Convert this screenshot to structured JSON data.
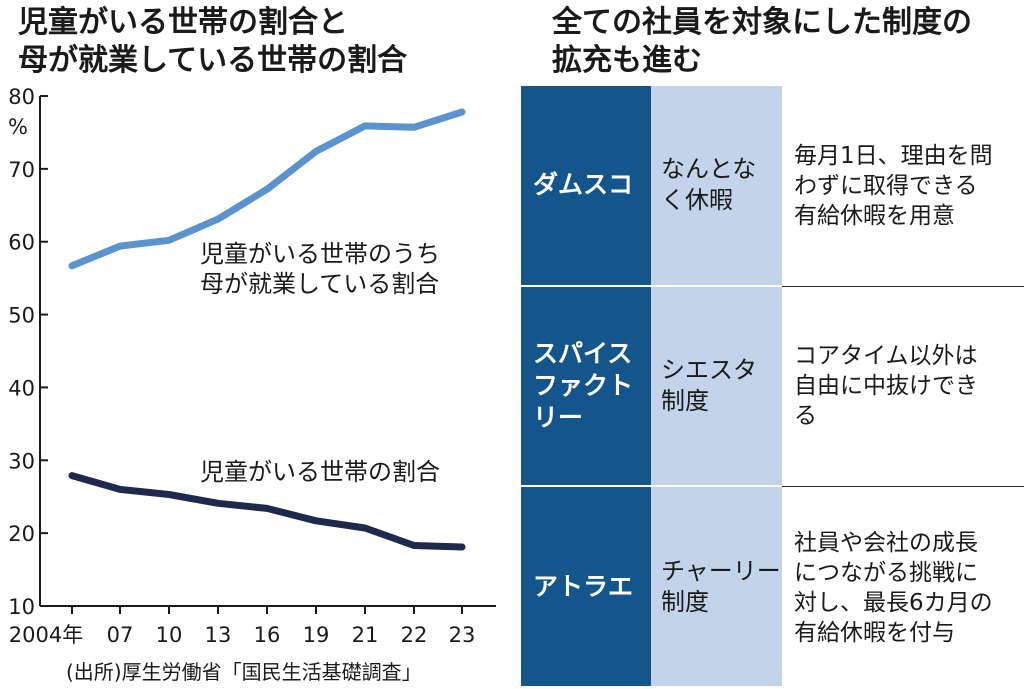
{
  "chart_title": "児童がいる世帯の割合と\n母が就業している世帯の割合",
  "table_title": "全ての社員を対象にした制度の\n拡充も進む",
  "source": "(出所)厚生労働省「国民生活基礎調査」",
  "chart_data": {
    "type": "line",
    "x": [
      "2004年",
      "07",
      "10",
      "13",
      "16",
      "19",
      "21",
      "22",
      "23"
    ],
    "ylim": [
      10,
      80
    ],
    "yticks": [
      10,
      20,
      30,
      40,
      50,
      60,
      70,
      80
    ],
    "yunit": "%",
    "grid": false,
    "series": [
      {
        "name": "児童がいる世帯のうち\n母が就業している割合",
        "color": "#5b93cf",
        "values": [
          56.7,
          59.4,
          60.2,
          63.1,
          67.2,
          72.4,
          75.9,
          75.7,
          77.8
        ]
      },
      {
        "name": "児童がいる世帯の割合",
        "color": "#1d2a4e",
        "values": [
          27.9,
          26.0,
          25.3,
          24.1,
          23.4,
          21.7,
          20.7,
          18.3,
          18.1
        ]
      }
    ]
  },
  "table": {
    "rows": [
      {
        "company": "ダムスコ",
        "policy": "なんとな\nく休暇",
        "description": "毎月1日、理由を問\nわずに取得できる\n有給休暇を用意"
      },
      {
        "company": "スパイス\nファクト\nリー",
        "policy": "シエスタ\n制度",
        "description": "コアタイム以外は\n自由に中抜けでき\nる"
      },
      {
        "company": "アトラエ",
        "policy": "チャーリー\n制度",
        "description": "社員や会社の成長\nにつながる挑戦に\n対し、最長6カ月の\n有給休暇を付与"
      }
    ]
  }
}
